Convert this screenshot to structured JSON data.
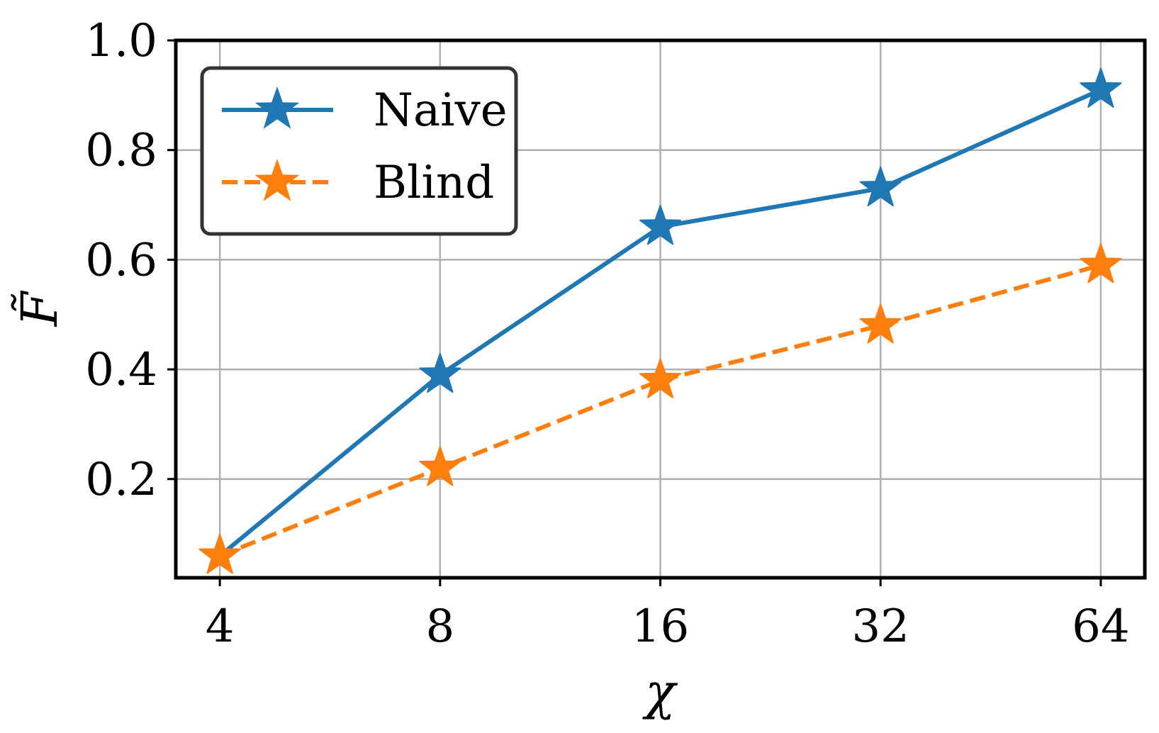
{
  "chart_data": {
    "type": "line",
    "xlabel": "χ",
    "ylabel": "F̃",
    "x_scale": "log2",
    "x": [
      4,
      8,
      16,
      32,
      64
    ],
    "x_tick_labels": [
      "4",
      "8",
      "16",
      "32",
      "64"
    ],
    "ylim": [
      0.02,
      1.0
    ],
    "y_ticks": [
      0.2,
      0.4,
      0.6,
      0.8,
      1.0
    ],
    "y_tick_labels": [
      "0.2",
      "0.4",
      "0.6",
      "0.8",
      "1.0"
    ],
    "grid": true,
    "legend_position": "top-left",
    "series": [
      {
        "name": "Naive",
        "values": [
          0.06,
          0.39,
          0.66,
          0.73,
          0.91
        ],
        "color": "#1f77b4",
        "linestyle": "solid",
        "marker": "star"
      },
      {
        "name": "Blind",
        "values": [
          0.06,
          0.22,
          0.38,
          0.48,
          0.59
        ],
        "color": "#ff7f0e",
        "linestyle": "dashed",
        "marker": "star"
      }
    ]
  }
}
